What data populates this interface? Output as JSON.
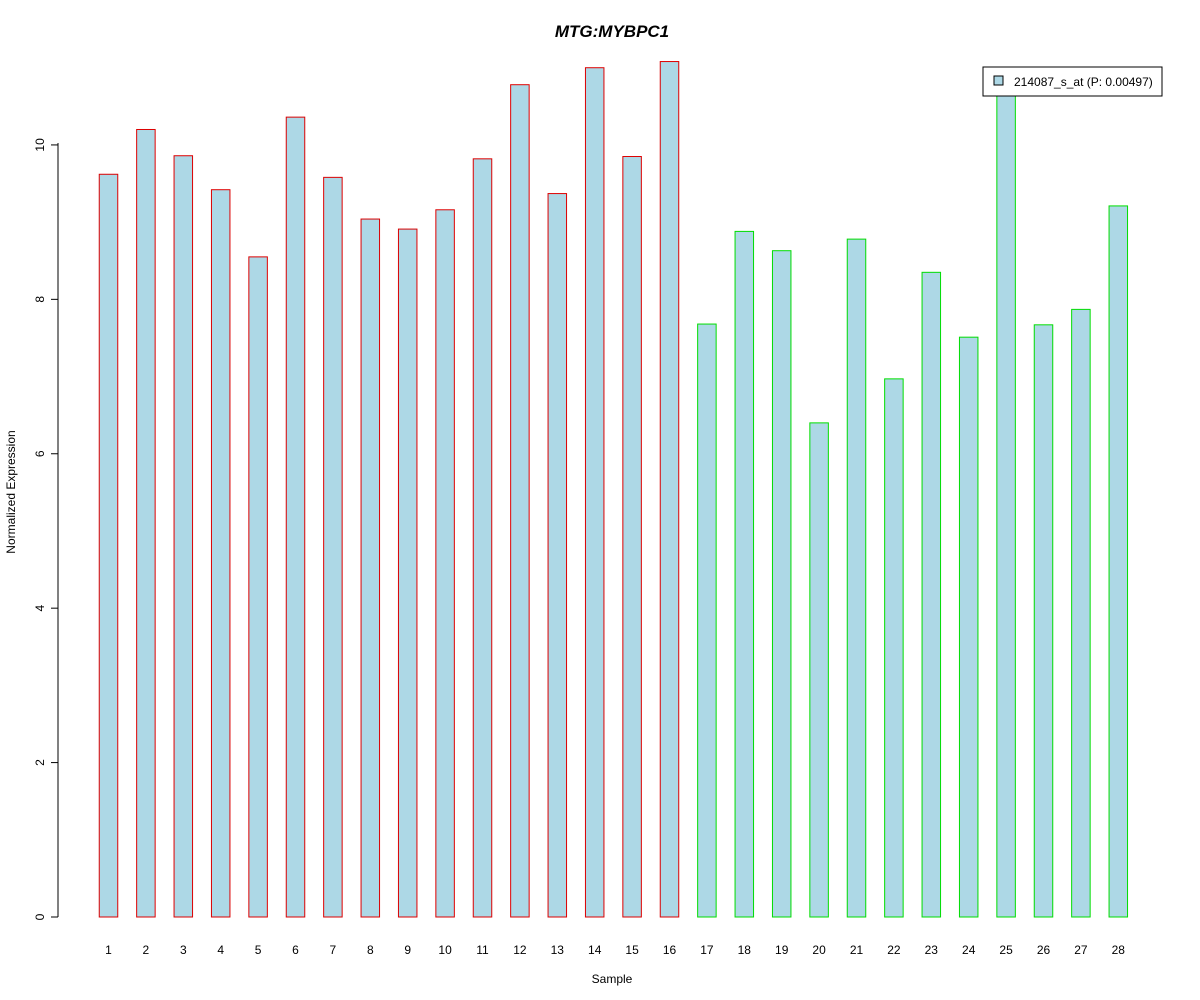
{
  "chart_data": {
    "type": "bar",
    "title": "MTG:MYBPC1",
    "xlabel": "Sample",
    "ylabel": "Normalized Expression",
    "ylim": [
      0,
      11.1
    ],
    "yticks": [
      0,
      2,
      4,
      6,
      8,
      10
    ],
    "grid": false,
    "legend_position": "top-right",
    "categories": [
      "1",
      "2",
      "3",
      "4",
      "5",
      "6",
      "7",
      "8",
      "9",
      "10",
      "11",
      "12",
      "13",
      "14",
      "15",
      "16",
      "17",
      "18",
      "19",
      "20",
      "21",
      "22",
      "23",
      "24",
      "25",
      "26",
      "27",
      "28"
    ],
    "series": [
      {
        "name": "214087_s_at (P: 0.00497)",
        "values": [
          9.62,
          10.2,
          9.86,
          9.42,
          8.55,
          10.36,
          9.58,
          9.04,
          8.91,
          9.16,
          9.82,
          10.78,
          9.37,
          11.0,
          9.85,
          11.08,
          7.68,
          8.88,
          8.63,
          6.4,
          8.78,
          6.97,
          8.35,
          7.51,
          11.0,
          7.67,
          7.87,
          9.21
        ]
      }
    ],
    "groups": [
      {
        "samples": [
          1,
          16
        ],
        "border_color": "#dd0000"
      },
      {
        "samples": [
          17,
          28
        ],
        "border_color": "#00dd00"
      }
    ],
    "bar_fill": "#add8e6",
    "title_color": "#0000cc"
  }
}
